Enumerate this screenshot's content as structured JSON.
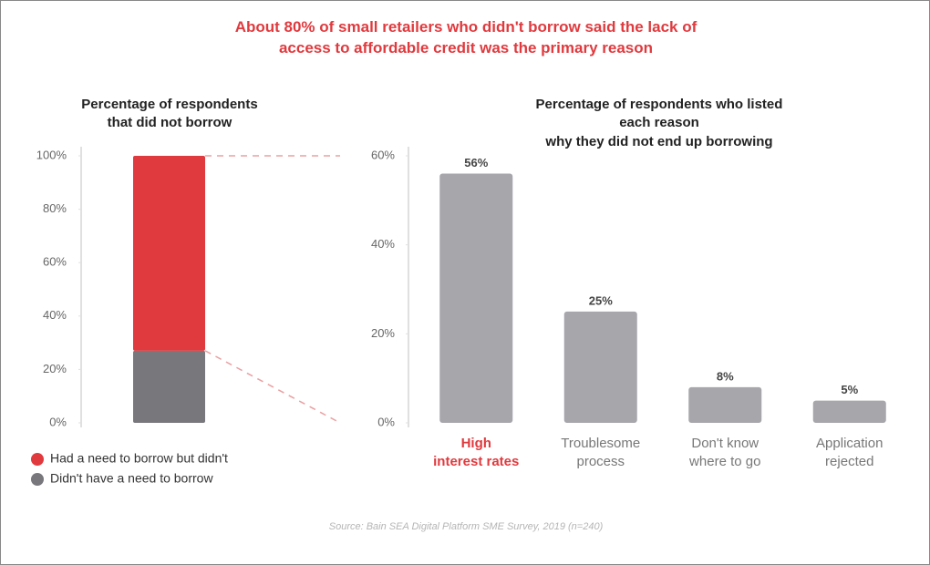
{
  "title": "About 80% of small retailers who didn't borrow said the lack of\naccess to affordable credit was the primary reason",
  "source": "Source: Bain SEA Digital Platform SME Survey, 2019 (n=240)",
  "chart_data": [
    {
      "type": "stacked_bar",
      "title": "Percentage of respondents\nthat did not borrow",
      "categories": [
        null
      ],
      "series": [
        {
          "name": "Had a need to borrow but didn't",
          "color": "#e03a3e",
          "values": [
            73
          ]
        },
        {
          "name": "Didn't have a need to borrow",
          "color": "#77777c",
          "values": [
            27
          ]
        }
      ],
      "ylim": [
        0,
        100
      ],
      "yticks": [
        {
          "value": 0,
          "label": "0%"
        },
        {
          "value": 20,
          "label": "20%"
        },
        {
          "value": 40,
          "label": "40%"
        },
        {
          "value": 60,
          "label": "60%"
        },
        {
          "value": 80,
          "label": "80%"
        },
        {
          "value": 100,
          "label": "100%"
        }
      ]
    },
    {
      "type": "bar",
      "title": "Percentage of respondents who listed each reason\nwhy they did not end up borrowing",
      "categories": [
        "High\ninterest rates",
        "Troublesome\nprocess",
        "Don't know\nwhere to go",
        "Application\nrejected"
      ],
      "values": [
        56,
        25,
        8,
        5
      ],
      "value_labels": [
        "56%",
        "25%",
        "8%",
        "5%"
      ],
      "color": "#a6a6ab",
      "label_colors": [
        "#e03a3e",
        "#777777",
        "#777777",
        "#777777"
      ],
      "ylim": [
        0,
        60
      ],
      "yticks": [
        {
          "value": 0,
          "label": "0%"
        },
        {
          "value": 20,
          "label": "20%"
        },
        {
          "value": 40,
          "label": "40%"
        },
        {
          "value": 60,
          "label": "60%"
        }
      ]
    }
  ]
}
